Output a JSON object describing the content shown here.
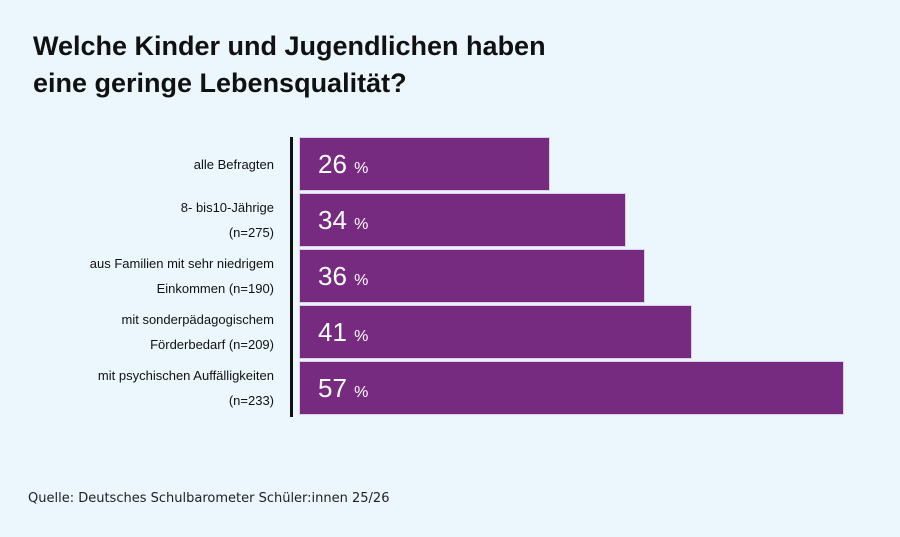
{
  "title_line1": "Welche Kinder und Jugendlichen haben",
  "title_line2": "eine geringe Lebensqualität?",
  "source": "Quelle: Deutsches Schulbarometer Schüler:innen 25/26",
  "chart_data": {
    "type": "bar",
    "orientation": "horizontal",
    "title": "Welche Kinder und Jugendlichen haben eine geringe Lebensqualität?",
    "categories": [
      [
        "alle Befragten"
      ],
      [
        "8- bis10-Jährige",
        "(n=275)"
      ],
      [
        "aus Familien mit sehr niedrigem",
        "Einkommen (n=190)"
      ],
      [
        "mit sonderpädagogischem",
        "Förderbedarf (n=209)"
      ],
      [
        "mit psychischen Auffälligkeiten",
        "(n=233)"
      ]
    ],
    "values": [
      26,
      34,
      36,
      41,
      57
    ],
    "unit": "%",
    "bar_color": "#772b80",
    "grid": false
  }
}
